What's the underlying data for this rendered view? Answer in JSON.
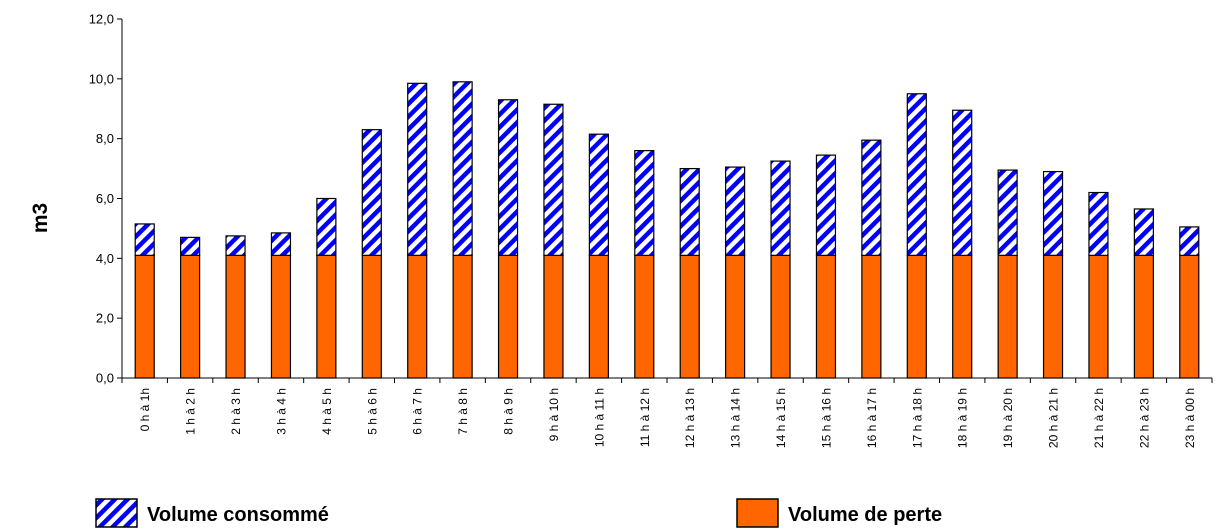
{
  "chart_data": {
    "type": "bar",
    "stacked": true,
    "ylabel": "m3",
    "xlabel": "",
    "ylim": [
      0,
      12
    ],
    "yticks": [
      "0,0",
      "2,0",
      "4,0",
      "6,0",
      "8,0",
      "10,0",
      "12,0"
    ],
    "grid": false,
    "legend_position": "bottom",
    "categories": [
      "0 h à 1h",
      "1 h à 2 h",
      "2 h à 3 h",
      "3 h à 4 h",
      "4 h à 5 h",
      "5 h à 6 h",
      "6 h à 7 h",
      "7 h à 8 h",
      "8 h à 9 h",
      "9 h à 10 h",
      "10 h à 11 h",
      "11 h à 12 h",
      "12 h à 13 h",
      "13 h à 14 h",
      "14 h à 15 h",
      "15 h à 16 h",
      "16 h à 17 h",
      "17 h à 18 h",
      "18 h à 19 h",
      "19 h à 20 h",
      "20 h à 21 h",
      "21 h à 22 h",
      "22 h à 23 h",
      "23 h à 00 h"
    ],
    "series": [
      {
        "name": "Volume de perte",
        "color": "#ff6600",
        "values": [
          4.1,
          4.1,
          4.1,
          4.1,
          4.1,
          4.1,
          4.1,
          4.1,
          4.1,
          4.1,
          4.1,
          4.1,
          4.1,
          4.1,
          4.1,
          4.1,
          4.1,
          4.1,
          4.1,
          4.1,
          4.1,
          4.1,
          4.1,
          4.1
        ]
      },
      {
        "name": "Volume consommé",
        "color": "#0000ff",
        "pattern": "diagonal-stripes",
        "values": [
          1.05,
          0.6,
          0.65,
          0.75,
          1.9,
          4.2,
          5.75,
          5.8,
          5.2,
          5.05,
          4.05,
          3.5,
          2.9,
          2.95,
          3.15,
          3.35,
          3.85,
          5.4,
          4.85,
          2.85,
          2.8,
          2.1,
          1.55,
          0.95
        ]
      }
    ]
  }
}
